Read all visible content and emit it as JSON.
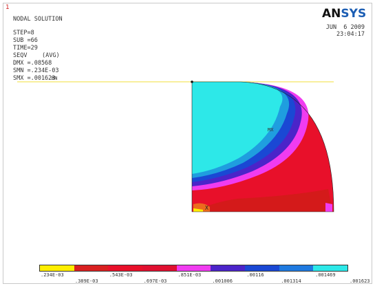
{
  "window_number": "1",
  "logo": {
    "part1": "AN",
    "part2": "SYS"
  },
  "header": {
    "title": "NODAL SOLUTION",
    "step": "STEP=8",
    "sub": "SUB =66",
    "time": "TIME=29",
    "result": "SEQV",
    "avg": "(AVG)",
    "dmx": "DMX =.08568",
    "smn": "SMN =.234E-03",
    "smx": "SMX =.001623"
  },
  "datetime": {
    "date": "JUN  6 2009",
    "time": "23:04:17"
  },
  "markers": {
    "mn": "MN",
    "mx": "MX",
    "axis": "X"
  },
  "contour_colors": [
    "#2de8e8",
    "#1f9edf",
    "#1a48d4",
    "#4b24c9",
    "#a52bd8",
    "#f03cf0",
    "#e8102a",
    "#d92020",
    "#ec6a1e",
    "#ffee00"
  ],
  "legend": {
    "colors": [
      "#ffee00",
      "#d92020",
      "#e8102a",
      "#e01030",
      "#f03cf0",
      "#4b24c9",
      "#1a48d4",
      "#1f7ae0",
      "#2de8e8"
    ],
    "labels_top": [
      ".234E-03",
      ".543E-03",
      ".851E-03",
      ".00116",
      ".001469"
    ],
    "labels_bottom": [
      ".389E-03",
      ".697E-03",
      ".001006",
      ".001314",
      ".001623"
    ]
  }
}
